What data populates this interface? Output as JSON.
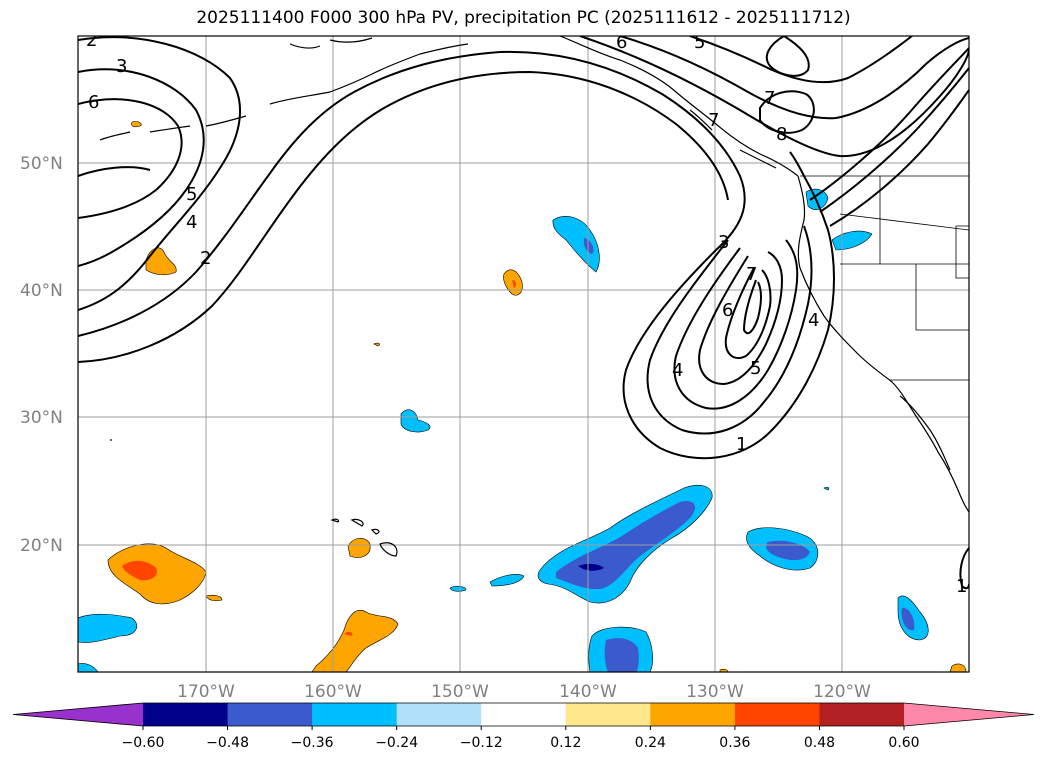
{
  "title": "2025111400 F000 300 hPa PV, precipitation PC (2025111612 - 2025111712)",
  "lat_ticks": [
    "50°N",
    "40°N",
    "30°N",
    "20°N"
  ],
  "lon_ticks": [
    "170°W",
    "160°W",
    "150°W",
    "140°W",
    "130°W",
    "120°W"
  ],
  "pv_contour_labels": [
    "2",
    "3",
    "6",
    "5",
    "4",
    "2",
    "6",
    "5",
    "7",
    "8",
    "7",
    "3",
    "6",
    "7",
    "4",
    "5",
    "1",
    "1",
    "4"
  ],
  "colorbar": {
    "tick_labels": [
      "−0.60",
      "−0.48",
      "−0.36",
      "−0.24",
      "−0.12",
      "0.12",
      "0.24",
      "0.36",
      "0.48",
      "0.60"
    ],
    "colors": [
      "#9932cc",
      "#00008b",
      "#3a5acd",
      "#00bfff",
      "#b0e0fa",
      "#ffffff",
      "#ffe88c",
      "#ffa500",
      "#ff4500",
      "#b22222",
      "#ff88aa"
    ]
  },
  "colors": {
    "neg_light": "#b0e0fa",
    "neg_mid": "#00bfff",
    "neg_strong": "#3a5acd",
    "neg_max": "#00008b",
    "pos_light": "#ffe88c",
    "pos_mid": "#ffa500",
    "pos_strong": "#ff4500"
  }
}
